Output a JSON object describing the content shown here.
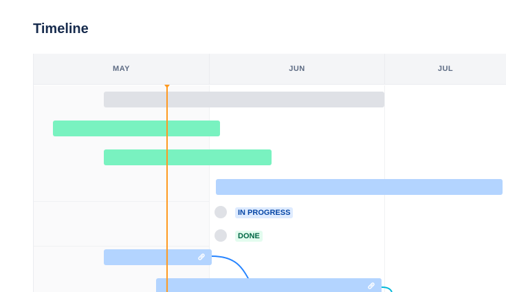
{
  "title": "Timeline",
  "months": [
    "MAY",
    "JUN",
    "JUL"
  ],
  "statuses": {
    "in_progress": "IN PROGRESS",
    "done": "DONE"
  },
  "colors": {
    "today": "#ff991f",
    "green": "#79f2c0",
    "blue": "#b3d4ff",
    "gray": "#dfe1e6",
    "dependency": "#2684ff"
  }
}
